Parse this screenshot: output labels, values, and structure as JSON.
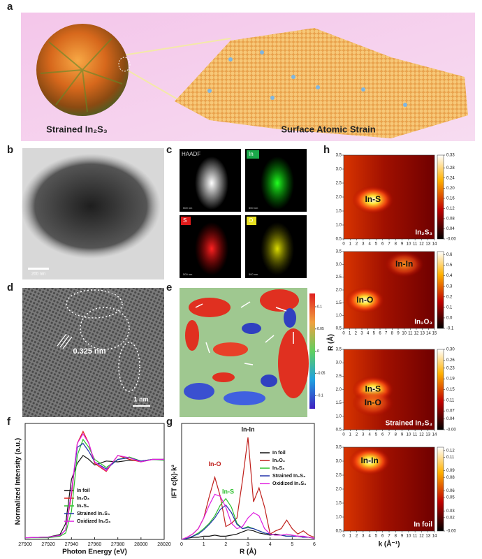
{
  "figure": {
    "panel_labels": [
      "a",
      "b",
      "c",
      "d",
      "e",
      "f",
      "g",
      "h"
    ],
    "a": {
      "left_label": "Strained In₂S₃",
      "right_label": "Surface Atomic Strain"
    },
    "b": {
      "scale": "200 nm"
    },
    "c": {
      "maps": [
        "HAADF",
        "In",
        "S",
        "O"
      ],
      "scale": "500 nm"
    },
    "d": {
      "spacing": "0.325 nm",
      "scale": "1 nm"
    },
    "e": {
      "clim": [
        -0.13,
        0.13
      ],
      "cticks": [
        0.1,
        0.05,
        0,
        -0.05,
        -0.1
      ]
    }
  },
  "chart_data": [
    {
      "type": "line",
      "xlabel": "Photon Energy (eV)",
      "ylabel": "Normalized Intensity (a.u.)",
      "xlim": [
        27900,
        28020
      ],
      "xticks": [
        27900,
        27920,
        27940,
        27960,
        27980,
        28000,
        28020
      ],
      "ylim": [
        0,
        1.45
      ],
      "x": [
        27900,
        27920,
        27930,
        27935,
        27940,
        27945,
        27950,
        27955,
        27960,
        27970,
        27980,
        27990,
        28000,
        28010,
        28020
      ],
      "series": [
        {
          "name": "In foil",
          "color": "#111111",
          "values": [
            0.02,
            0.03,
            0.06,
            0.2,
            0.75,
            0.95,
            1.05,
            1.0,
            0.93,
            0.98,
            0.97,
            0.99,
            0.98,
            1.0,
            1.0
          ]
        },
        {
          "name": "In₂O₃",
          "color": "#e0201c",
          "values": [
            0.02,
            0.03,
            0.05,
            0.12,
            0.55,
            1.2,
            1.35,
            1.2,
            0.95,
            0.85,
            1.05,
            1.0,
            0.97,
            1.0,
            1.0
          ]
        },
        {
          "name": "In₂S₃",
          "color": "#2cc02c",
          "values": [
            0.02,
            0.02,
            0.04,
            0.08,
            0.35,
            1.05,
            1.25,
            1.15,
            1.0,
            0.9,
            1.0,
            1.03,
            0.98,
            1.0,
            0.99
          ]
        },
        {
          "name": "Strained In₂S₃",
          "color": "#2233aa",
          "values": [
            0.02,
            0.03,
            0.05,
            0.12,
            0.6,
            1.15,
            1.2,
            1.1,
            0.97,
            0.88,
            1.0,
            1.02,
            0.98,
            1.0,
            1.0
          ]
        },
        {
          "name": "Oxidized In₂S₃",
          "color": "#e020e0",
          "values": [
            0.02,
            0.03,
            0.05,
            0.12,
            0.6,
            1.2,
            1.32,
            1.2,
            0.97,
            0.86,
            1.05,
            1.02,
            0.97,
            1.0,
            1.0
          ]
        }
      ]
    },
    {
      "type": "line",
      "xlabel": "R (Å)",
      "ylabel": "IFT c(k)·k³",
      "xlim": [
        0,
        6
      ],
      "xticks": [
        0,
        1,
        2,
        3,
        4,
        5,
        6
      ],
      "ylim": [
        0,
        1.08
      ],
      "x": [
        0,
        0.25,
        0.5,
        0.75,
        1,
        1.25,
        1.5,
        1.75,
        2,
        2.25,
        2.5,
        2.75,
        3,
        3.25,
        3.5,
        3.75,
        4,
        4.25,
        4.5,
        4.75,
        5,
        5.25,
        5.5,
        5.75,
        6
      ],
      "series": [
        {
          "name": "In foil",
          "color": "#111111",
          "values": [
            0,
            0.01,
            0.02,
            0.02,
            0.03,
            0.03,
            0.04,
            0.03,
            0.03,
            0.04,
            0.05,
            0.07,
            0.09,
            0.08,
            0.06,
            0.05,
            0.04,
            0.05,
            0.04,
            0.03,
            0.03,
            0.03,
            0.02,
            0.02,
            0.01
          ]
        },
        {
          "name": "In₂O₃",
          "color": "#c0201c",
          "values": [
            0,
            0.02,
            0.05,
            0.1,
            0.2,
            0.4,
            0.58,
            0.4,
            0.12,
            0.15,
            0.2,
            0.55,
            0.95,
            0.35,
            0.48,
            0.3,
            0.05,
            0.08,
            0.1,
            0.18,
            0.1,
            0.05,
            0.08,
            0.04,
            0.02
          ]
        },
        {
          "name": "In₂S₃",
          "color": "#2cc02c",
          "values": [
            0,
            0.01,
            0.03,
            0.06,
            0.1,
            0.15,
            0.22,
            0.32,
            0.38,
            0.3,
            0.15,
            0.1,
            0.12,
            0.1,
            0.08,
            0.06,
            0.05,
            0.04,
            0.04,
            0.03,
            0.03,
            0.03,
            0.02,
            0.02,
            0.01
          ]
        },
        {
          "name": "Strained In₂S₃",
          "color": "#2233aa",
          "values": [
            0,
            0.01,
            0.03,
            0.05,
            0.09,
            0.14,
            0.2,
            0.28,
            0.32,
            0.25,
            0.14,
            0.1,
            0.11,
            0.1,
            0.08,
            0.06,
            0.05,
            0.04,
            0.04,
            0.03,
            0.03,
            0.03,
            0.02,
            0.02,
            0.01
          ]
        },
        {
          "name": "Oxidized In₂S₃",
          "color": "#e020e0",
          "values": [
            0,
            0.02,
            0.05,
            0.1,
            0.2,
            0.32,
            0.42,
            0.4,
            0.3,
            0.15,
            0.1,
            0.12,
            0.2,
            0.25,
            0.22,
            0.1,
            0.05,
            0.04,
            0.04,
            0.05,
            0.04,
            0.03,
            0.03,
            0.02,
            0.01
          ]
        }
      ],
      "annotations": [
        {
          "text": "In-In",
          "x": 3.0,
          "y": 1.02,
          "color": "#111111"
        },
        {
          "text": "In-O",
          "x": 1.5,
          "y": 0.7,
          "color": "#c0201c"
        },
        {
          "text": "In-S",
          "x": 2.1,
          "y": 0.44,
          "color": "#2cc02c"
        }
      ]
    },
    {
      "type": "heatmap",
      "ylabel": "R (Å)",
      "xlim": [
        0,
        14
      ],
      "xticks": [
        0,
        1,
        2,
        3,
        4,
        5,
        6,
        7,
        8,
        9,
        10,
        11,
        12,
        13,
        14
      ],
      "ylim": [
        0.5,
        3.5
      ],
      "yticks": [
        0.5,
        {
          "value": 1,
          "label": "1.0"
        },
        1.5,
        {
          "value": 2,
          "label": "2.0"
        },
        2.5,
        {
          "value": 3,
          "label": "3.0"
        },
        3.5
      ],
      "clim": [
        0,
        0.33
      ],
      "cticks": [
        0.33,
        0.28,
        0.24,
        {
          "value": 0.2,
          "label": "0.20"
        },
        0.16,
        0.12,
        0.08,
        0.04,
        {
          "value": 0,
          "label": "-0.00"
        }
      ],
      "sample": "In₂S₃",
      "annotations": [
        {
          "text": "In-S",
          "x": 4.5,
          "y": 1.9
        }
      ]
    },
    {
      "type": "heatmap",
      "xlim": [
        0,
        15
      ],
      "xticks": [
        0,
        1,
        2,
        3,
        4,
        5,
        6,
        7,
        8,
        9,
        10,
        11,
        12,
        13,
        14,
        15
      ],
      "ylim": [
        0.5,
        3.5
      ],
      "yticks": [
        0.5,
        {
          "value": 1,
          "label": "1.0"
        },
        1.5,
        {
          "value": 2,
          "label": "2.0"
        },
        2.5,
        {
          "value": 3,
          "label": "3.0"
        },
        3.5
      ],
      "clim": [
        -0.1,
        0.63
      ],
      "cticks": [
        0.6,
        0.5,
        0.4,
        0.3,
        0.2,
        0.1,
        {
          "value": 0,
          "label": "0.0"
        },
        -0.1
      ],
      "sample": "In₂O₃",
      "annotations": [
        {
          "text": "In-O",
          "x": 3.5,
          "y": 1.6
        },
        {
          "text": "In-In",
          "x": 10,
          "y": 3.0
        }
      ]
    },
    {
      "type": "heatmap",
      "xlim": [
        0,
        14
      ],
      "xticks": [
        0,
        1,
        2,
        3,
        4,
        5,
        6,
        7,
        8,
        9,
        10,
        11,
        12,
        13,
        14
      ],
      "ylim": [
        0.5,
        3.5
      ],
      "yticks": [
        0.5,
        {
          "value": 1,
          "label": "1.0"
        },
        1.5,
        {
          "value": 2,
          "label": "2.0"
        },
        2.5,
        {
          "value": 3,
          "label": "3.0"
        },
        3.5
      ],
      "clim": [
        0,
        0.3
      ],
      "cticks": [
        {
          "value": 0.3,
          "label": "0.30"
        },
        0.26,
        0.23,
        0.19,
        0.15,
        0.11,
        0.07,
        0.04,
        {
          "value": 0,
          "label": "-0.00"
        }
      ],
      "sample": "Strained In₂S₃",
      "annotations": [
        {
          "text": "In-S",
          "x": 4.5,
          "y": 2.0
        },
        {
          "text": "In-O",
          "x": 4.5,
          "y": 1.5
        }
      ]
    },
    {
      "type": "heatmap",
      "xlabel": "k (Å⁻¹)",
      "xlim": [
        0,
        14
      ],
      "xticks": [
        0,
        1,
        2,
        3,
        4,
        5,
        6,
        7,
        8,
        9,
        10,
        11,
        12,
        13,
        14
      ],
      "ylim": [
        0.5,
        3.5
      ],
      "yticks": [
        0.5,
        {
          "value": 1,
          "label": "1.0"
        },
        1.5,
        {
          "value": 2,
          "label": "2.0"
        },
        2.5,
        {
          "value": 3,
          "label": "3.0"
        },
        3.5
      ],
      "clim": [
        0,
        0.125
      ],
      "cticks": [
        0.12,
        0.11,
        0.09,
        0.08,
        0.06,
        0.05,
        0.03,
        0.02,
        {
          "value": 0,
          "label": "-0.00"
        }
      ],
      "sample": "In foil",
      "annotations": [
        {
          "text": "In-In",
          "x": 4,
          "y": 3.0
        }
      ]
    }
  ]
}
